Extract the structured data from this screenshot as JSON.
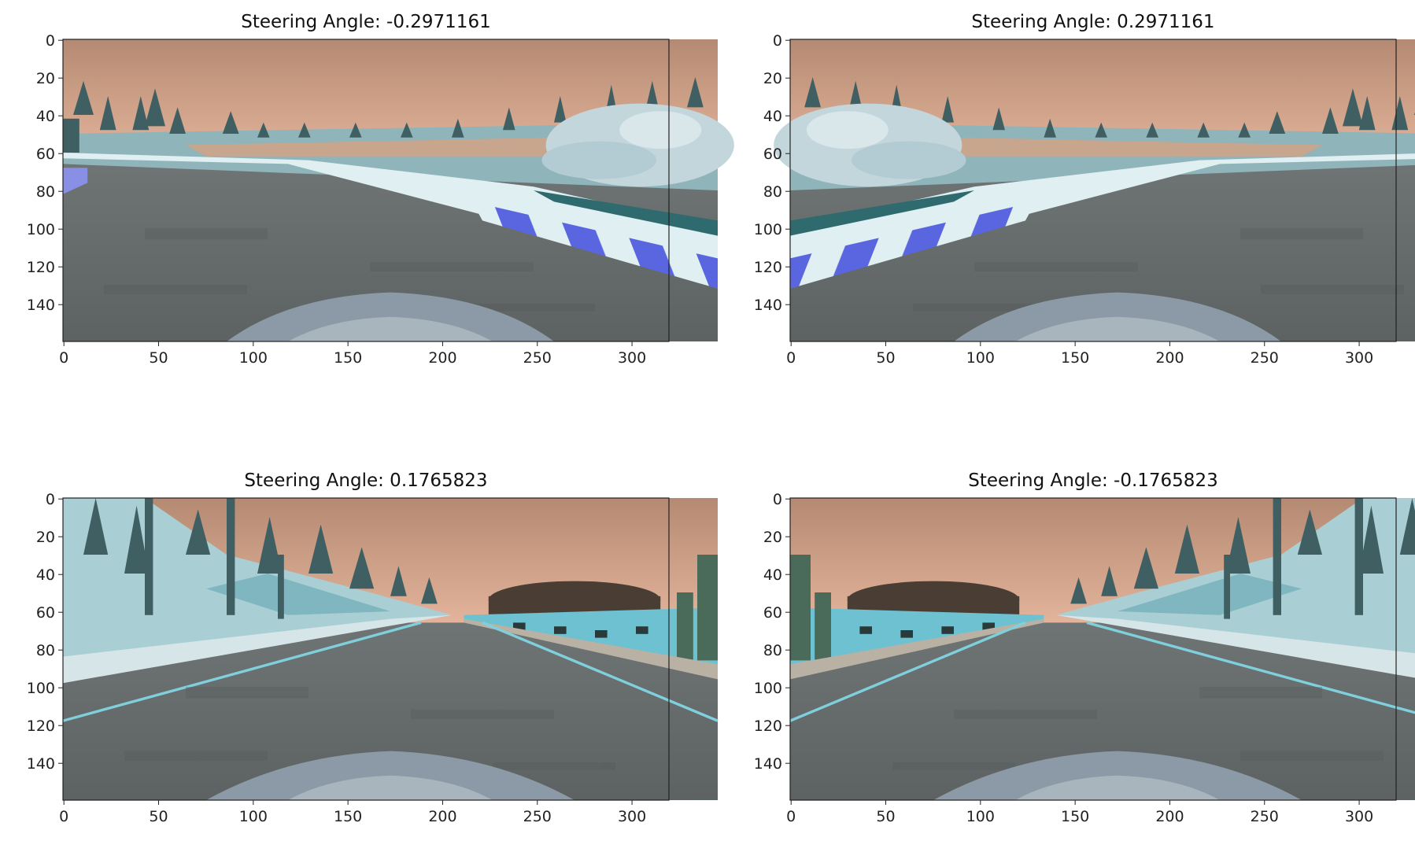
{
  "panels": [
    {
      "title": "Steering Angle: -0.2971161",
      "angle": -0.2971161,
      "scene": "curve-left",
      "mirrored": false,
      "xticks": [
        0,
        50,
        100,
        150,
        200,
        250,
        300
      ],
      "yticks": [
        0,
        20,
        40,
        60,
        80,
        100,
        120,
        140
      ]
    },
    {
      "title": "Steering Angle: 0.2971161",
      "angle": 0.2971161,
      "scene": "curve-left",
      "mirrored": true,
      "xticks": [
        0,
        50,
        100,
        150,
        200,
        250,
        300
      ],
      "yticks": [
        0,
        20,
        40,
        60,
        80,
        100,
        120,
        140
      ]
    },
    {
      "title": "Steering Angle: 0.1765823",
      "angle": 0.1765823,
      "scene": "straight-road",
      "mirrored": false,
      "xticks": [
        0,
        50,
        100,
        150,
        200,
        250,
        300
      ],
      "yticks": [
        0,
        20,
        40,
        60,
        80,
        100,
        120,
        140
      ]
    },
    {
      "title": "Steering Angle: -0.1765823",
      "angle": -0.1765823,
      "scene": "straight-road",
      "mirrored": true,
      "xticks": [
        0,
        50,
        100,
        150,
        200,
        250,
        300
      ],
      "yticks": [
        0,
        20,
        40,
        60,
        80,
        100,
        120,
        140
      ]
    }
  ],
  "image_size": {
    "width": 320,
    "height": 160
  },
  "colors": {
    "sky": "#cc9e84",
    "road": "#6d7373",
    "hood": "#8b9aa6",
    "trees": "#3f5f63",
    "ice": "#a9cfd5",
    "stripe_blue": "#5a66e0"
  }
}
